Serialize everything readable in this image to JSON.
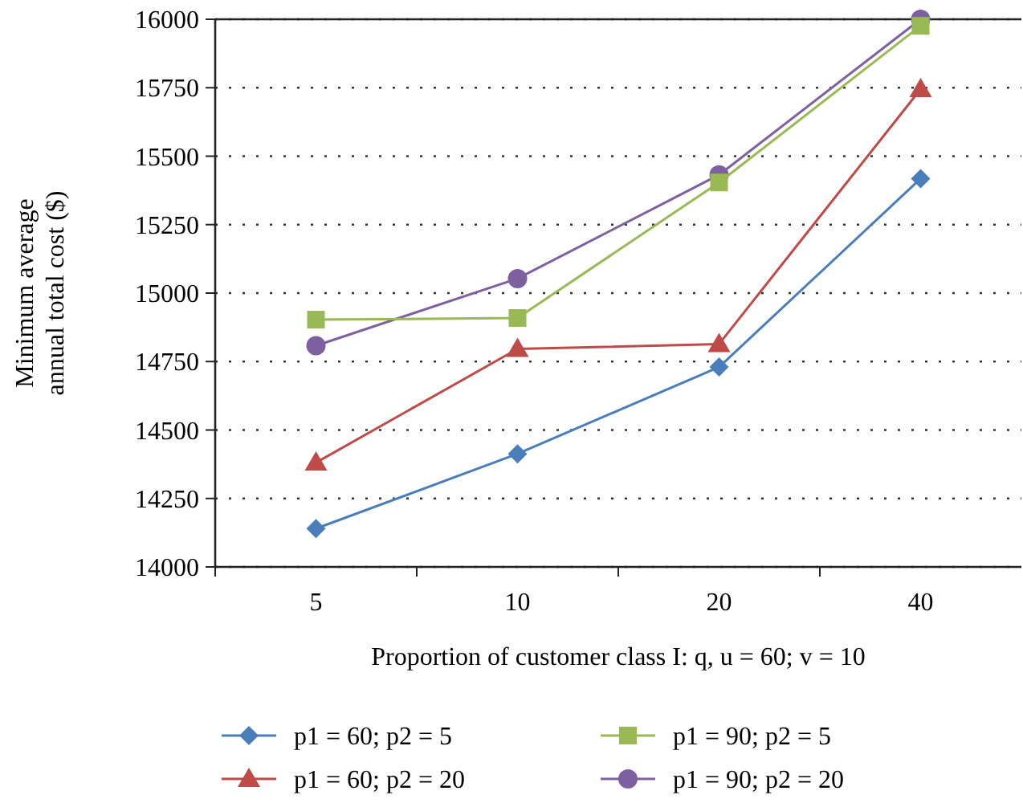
{
  "chart_data": {
    "type": "line",
    "xlabel": "Proportion of customer class I: q, u = 60;  v = 10",
    "ylabel": "Minimum average\nannual total cost ($)",
    "categories": [
      "5",
      "10",
      "20",
      "40"
    ],
    "series": [
      {
        "name": "p1 = 60; p2 = 5",
        "color": "#4a7ebb",
        "marker": "diamond",
        "values": [
          14140,
          14413,
          14730,
          15418
        ]
      },
      {
        "name": "p1 = 60; p2 = 20",
        "color": "#be4b48",
        "marker": "triangle",
        "values": [
          14381,
          14796,
          14814,
          15745
        ]
      },
      {
        "name": "p1 = 90; p2 = 5",
        "color": "#98b954",
        "marker": "square",
        "values": [
          14903,
          14909,
          15404,
          15976
        ]
      },
      {
        "name": "p1 = 90; p2 = 20",
        "color": "#7d60a0",
        "marker": "circle",
        "values": [
          14808,
          15053,
          15432,
          16000
        ]
      }
    ],
    "ylim": [
      14000,
      16000
    ],
    "yticks": [
      14000,
      14250,
      14500,
      14750,
      15000,
      15250,
      15500,
      15750,
      16000
    ],
    "grid": "y",
    "legend": "bottom",
    "line_style": "solid"
  }
}
